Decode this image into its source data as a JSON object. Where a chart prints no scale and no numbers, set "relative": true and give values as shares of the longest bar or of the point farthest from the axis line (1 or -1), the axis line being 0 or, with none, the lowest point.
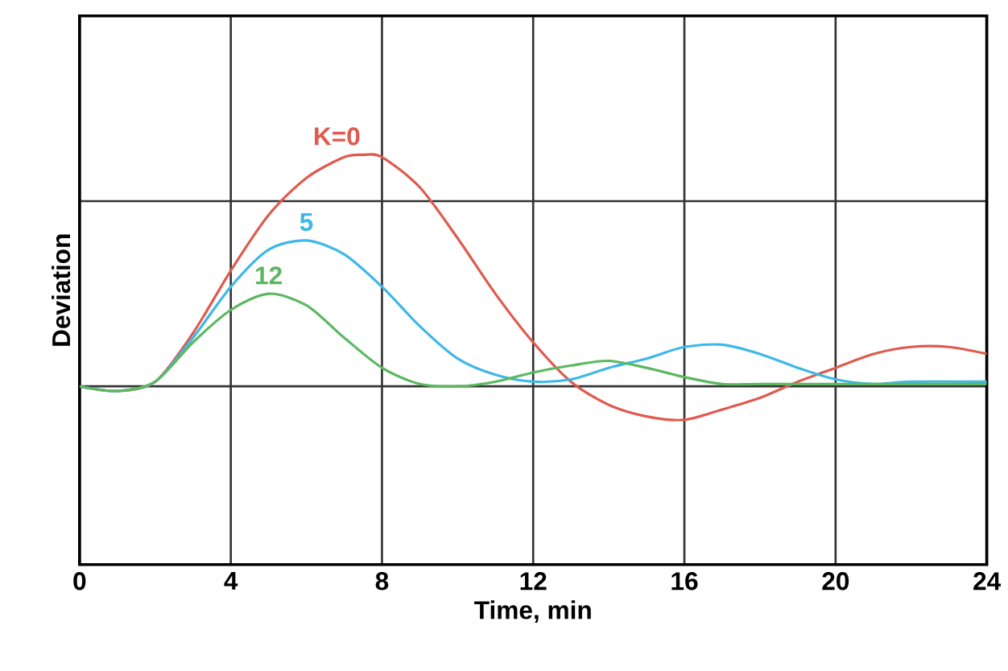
{
  "chart_data": {
    "type": "line",
    "relative": true,
    "xlabel": "Time, min",
    "ylabel": "Deviation",
    "grid": true,
    "xlim": [
      0,
      24
    ],
    "xticks": [
      0,
      4,
      8,
      12,
      16,
      20,
      24
    ],
    "series": [
      {
        "name": "K=0",
        "color": "#e05a4e",
        "x": [
          0,
          1,
          2,
          3,
          4,
          5,
          6,
          7,
          7.5,
          8,
          9,
          10,
          11,
          12,
          13,
          14,
          15,
          16,
          17,
          18,
          19,
          20,
          21,
          22,
          23,
          24
        ],
        "values": [
          0,
          -0.02,
          0.02,
          0.23,
          0.5,
          0.74,
          0.9,
          0.99,
          1,
          0.99,
          0.86,
          0.64,
          0.4,
          0.19,
          0.02,
          -0.08,
          -0.13,
          -0.145,
          -0.1,
          -0.05,
          0.02,
          0.08,
          0.14,
          0.17,
          0.17,
          0.14
        ]
      },
      {
        "name": "5",
        "color": "#3db8e8",
        "x": [
          0,
          1,
          2,
          3,
          4,
          5,
          6,
          7,
          8,
          9,
          10,
          11,
          12,
          13,
          14,
          15,
          16,
          17,
          18,
          19,
          20,
          21,
          22,
          24
        ],
        "values": [
          0,
          -0.02,
          0.02,
          0.21,
          0.43,
          0.59,
          0.63,
          0.57,
          0.43,
          0.26,
          0.12,
          0.05,
          0.02,
          0.03,
          0.08,
          0.12,
          0.17,
          0.18,
          0.14,
          0.08,
          0.03,
          0.01,
          0.02,
          0.02
        ]
      },
      {
        "name": "12",
        "color": "#5cb860",
        "x": [
          0,
          1,
          2,
          3,
          4,
          5,
          6,
          7,
          8,
          9,
          10,
          11,
          12,
          13,
          14,
          15,
          16,
          17,
          18,
          20,
          24
        ],
        "values": [
          0,
          -0.02,
          0.02,
          0.19,
          0.33,
          0.4,
          0.35,
          0.21,
          0.08,
          0.01,
          0,
          0.02,
          0.06,
          0.09,
          0.11,
          0.08,
          0.04,
          0.01,
          0.01,
          0.01,
          0.01
        ]
      }
    ]
  }
}
